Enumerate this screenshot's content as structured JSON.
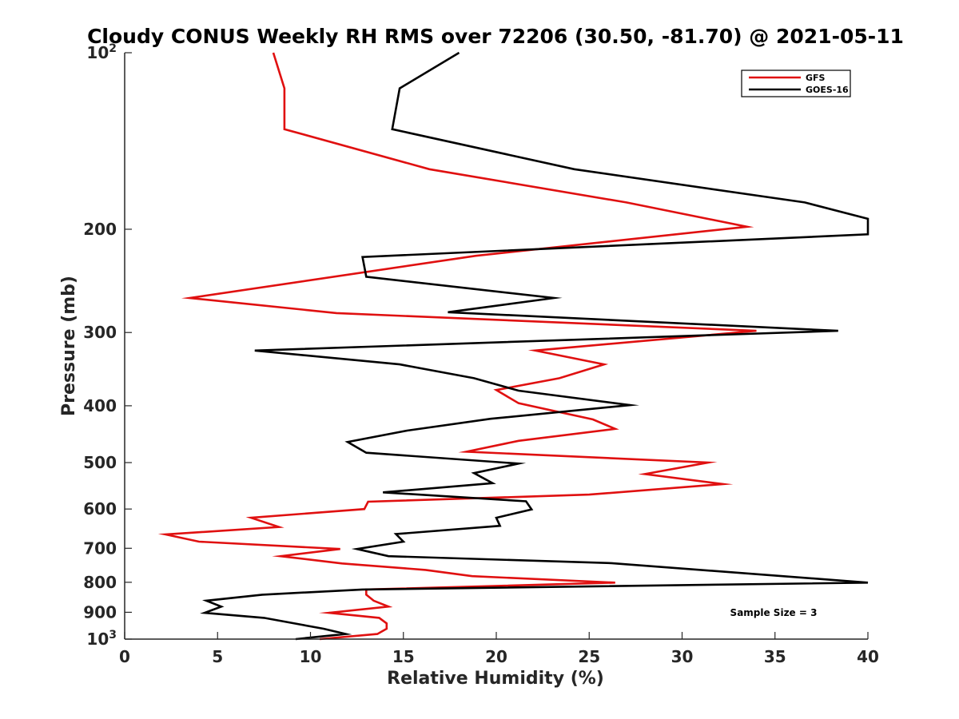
{
  "chart_data": {
    "type": "line",
    "title": "Cloudy CONUS Weekly RH RMS over 72206 (30.50, -81.70) @ 2021-05-11",
    "xlabel": "Relative Humidity (%)",
    "ylabel": "Pressure (mb)",
    "xlim": [
      0,
      40
    ],
    "ylim": [
      100,
      1000
    ],
    "yscale": "log",
    "yreversed": true,
    "x_ticks": [
      0,
      5,
      10,
      15,
      20,
      25,
      30,
      35,
      40
    ],
    "y_ticks": [
      {
        "value": 100,
        "label": "10",
        "sup": "2"
      },
      {
        "value": 200,
        "label": "200",
        "sup": ""
      },
      {
        "value": 300,
        "label": "300",
        "sup": ""
      },
      {
        "value": 400,
        "label": "400",
        "sup": ""
      },
      {
        "value": 500,
        "label": "500",
        "sup": ""
      },
      {
        "value": 600,
        "label": "600",
        "sup": ""
      },
      {
        "value": 700,
        "label": "700",
        "sup": ""
      },
      {
        "value": 800,
        "label": "800",
        "sup": ""
      },
      {
        "value": 900,
        "label": "900",
        "sup": ""
      },
      {
        "value": 1000,
        "label": "10",
        "sup": "3"
      }
    ],
    "legend_position": "top-right",
    "annotation": "Sample Size = 3",
    "series": [
      {
        "name": "GFS",
        "color": "#e01010",
        "points": [
          [
            8.0,
            100
          ],
          [
            8.6,
            115
          ],
          [
            8.6,
            135
          ],
          [
            16.4,
            158
          ],
          [
            27.0,
            180
          ],
          [
            33.5,
            198
          ],
          [
            18.9,
            222
          ],
          [
            3.5,
            262
          ],
          [
            11.4,
            278
          ],
          [
            34.0,
            298
          ],
          [
            22.1,
            322
          ],
          [
            25.8,
            340
          ],
          [
            23.4,
            359
          ],
          [
            20.0,
            376
          ],
          [
            21.2,
            396
          ],
          [
            25.2,
            422
          ],
          [
            26.4,
            438
          ],
          [
            21.2,
            459
          ],
          [
            18.4,
            479
          ],
          [
            31.4,
            500
          ],
          [
            28.0,
            523
          ],
          [
            32.2,
            544
          ],
          [
            25.0,
            567
          ],
          [
            13.1,
            583
          ],
          [
            12.9,
            600
          ],
          [
            6.8,
            621
          ],
          [
            8.3,
            644
          ],
          [
            2.2,
            663
          ],
          [
            4.0,
            682
          ],
          [
            11.6,
            702
          ],
          [
            8.4,
            722
          ],
          [
            11.7,
            743
          ],
          [
            16.2,
            762
          ],
          [
            18.7,
            781
          ],
          [
            26.4,
            801
          ],
          [
            13.0,
            823
          ],
          [
            13.0,
            840
          ],
          [
            13.4,
            860
          ],
          [
            14.2,
            880
          ],
          [
            11.0,
            902
          ],
          [
            13.7,
            920
          ],
          [
            14.1,
            940
          ],
          [
            14.1,
            960
          ],
          [
            13.6,
            980
          ],
          [
            10.5,
            1000
          ]
        ]
      },
      {
        "name": "GOES-16",
        "color": "#000000",
        "points": [
          [
            18.0,
            100
          ],
          [
            14.8,
            115
          ],
          [
            14.4,
            135
          ],
          [
            24.2,
            158
          ],
          [
            36.6,
            180
          ],
          [
            40.0,
            192
          ],
          [
            40.0,
            204
          ],
          [
            12.8,
            223
          ],
          [
            13.0,
            241
          ],
          [
            23.1,
            262
          ],
          [
            17.4,
            277
          ],
          [
            38.4,
            298
          ],
          [
            7.0,
            322
          ],
          [
            14.8,
            340
          ],
          [
            18.8,
            359
          ],
          [
            21.2,
            377
          ],
          [
            27.2,
            399
          ],
          [
            19.7,
            421
          ],
          [
            15.2,
            441
          ],
          [
            12.0,
            461
          ],
          [
            13.0,
            481
          ],
          [
            21.2,
            502
          ],
          [
            18.8,
            521
          ],
          [
            19.8,
            542
          ],
          [
            13.9,
            562
          ],
          [
            21.6,
            582
          ],
          [
            21.9,
            601
          ],
          [
            20.0,
            621
          ],
          [
            20.2,
            641
          ],
          [
            14.6,
            662
          ],
          [
            15.0,
            682
          ],
          [
            12.5,
            702
          ],
          [
            14.2,
            722
          ],
          [
            26.2,
            742
          ],
          [
            40.0,
            801
          ],
          [
            12.8,
            823
          ],
          [
            7.4,
            840
          ],
          [
            4.4,
            860
          ],
          [
            5.2,
            880
          ],
          [
            4.3,
            902
          ],
          [
            7.5,
            920
          ],
          [
            10.7,
            960
          ],
          [
            11.9,
            980
          ],
          [
            9.2,
            1000
          ]
        ]
      }
    ]
  }
}
